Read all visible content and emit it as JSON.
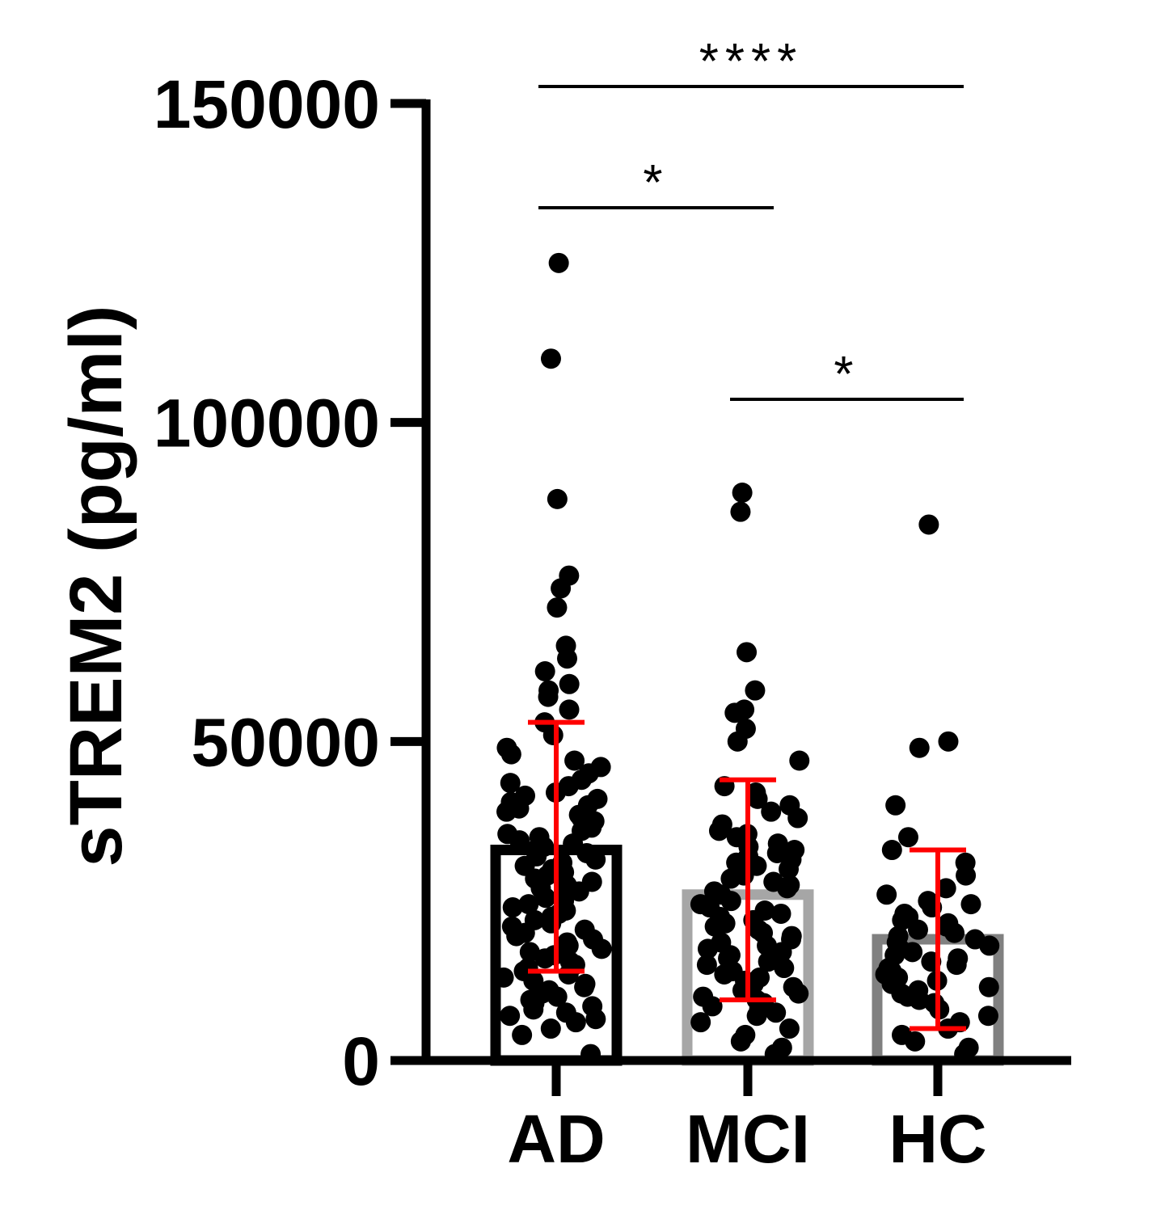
{
  "chart_data": {
    "type": "bar",
    "ylabel": "sTREM2 (pg/ml)",
    "ylim": [
      0,
      150000
    ],
    "yticks": [
      "0",
      "50000",
      "100000",
      "150000"
    ],
    "grid": false,
    "categories": [
      "AD",
      "MCI",
      "HC"
    ],
    "bar_colors": [
      "#000000",
      "#a6a6a6",
      "#808080"
    ],
    "point_color": "#000000",
    "error_bar_color": "#ff0000",
    "bars": [
      {
        "category": "AD",
        "mean": 33000,
        "sd_low": 14000,
        "sd_high": 53000
      },
      {
        "category": "MCI",
        "mean": 26000,
        "sd_low": 9500,
        "sd_high": 44000
      },
      {
        "category": "HC",
        "mean": 19000,
        "sd_low": 5000,
        "sd_high": 33000
      }
    ],
    "points": [
      [
        125000,
        110000,
        88000,
        76000,
        74000,
        71000,
        65000,
        63000,
        61000,
        59000,
        58000,
        57000,
        55000,
        53000,
        51000,
        49000,
        48000,
        47000,
        46000,
        45000,
        44000,
        43500,
        43000,
        42000,
        41500,
        41000,
        40500,
        40000,
        39500,
        39000,
        38500,
        38000,
        37500,
        37000,
        36500,
        36000,
        35500,
        35000,
        34500,
        34000,
        33500,
        33000,
        32500,
        32000,
        31500,
        31000,
        30500,
        30000,
        29500,
        29000,
        28500,
        28000,
        27500,
        27000,
        26500,
        26000,
        25500,
        25000,
        24500,
        24000,
        23500,
        23000,
        22500,
        22000,
        21500,
        21000,
        20500,
        20000,
        19500,
        19000,
        18500,
        18000,
        17500,
        17000,
        16500,
        16000,
        15500,
        15000,
        14500,
        14000,
        13500,
        13000,
        12500,
        12000,
        11500,
        11000,
        10500,
        10000,
        9500,
        9000,
        8500,
        8000,
        7500,
        7000,
        6500,
        6000,
        5000,
        4000,
        1000
      ],
      [
        89000,
        86000,
        64000,
        58000,
        55000,
        54500,
        52000,
        50000,
        47000,
        43000,
        42000,
        41000,
        40000,
        39000,
        38000,
        37000,
        36000,
        35500,
        35000,
        34000,
        33500,
        33000,
        32500,
        32000,
        31500,
        31000,
        30500,
        30000,
        29000,
        28500,
        28000,
        27500,
        27000,
        26500,
        26000,
        25000,
        24500,
        24000,
        23500,
        23000,
        22500,
        22000,
        21500,
        21000,
        20500,
        20000,
        19500,
        19000,
        18500,
        18000,
        17500,
        17000,
        16500,
        16000,
        15500,
        15000,
        14500,
        14000,
        13500,
        13000,
        12500,
        12000,
        11500,
        11000,
        10500,
        10000,
        9500,
        9000,
        8500,
        8000,
        7500,
        7000,
        6000,
        5000,
        4000,
        3000,
        2000,
        1000
      ],
      [
        84000,
        50000,
        49000,
        40000,
        35000,
        33000,
        31000,
        29000,
        27000,
        26000,
        25000,
        24500,
        24000,
        23000,
        22500,
        22000,
        21500,
        21000,
        20500,
        20000,
        19500,
        19000,
        18500,
        18000,
        17500,
        17000,
        16500,
        16000,
        15500,
        15000,
        14500,
        14000,
        13500,
        13000,
        12500,
        12000,
        11500,
        11000,
        10500,
        10000,
        9500,
        9000,
        8000,
        7000,
        6000,
        5000,
        4000,
        3000,
        2000,
        1000
      ]
    ],
    "significance": [
      {
        "from": "AD",
        "to": "HC",
        "label": "****",
        "level": 1
      },
      {
        "from": "AD",
        "to": "MCI",
        "label": "*",
        "level": 2
      },
      {
        "from": "MCI",
        "to": "HC",
        "label": "*",
        "level": 3
      }
    ]
  }
}
